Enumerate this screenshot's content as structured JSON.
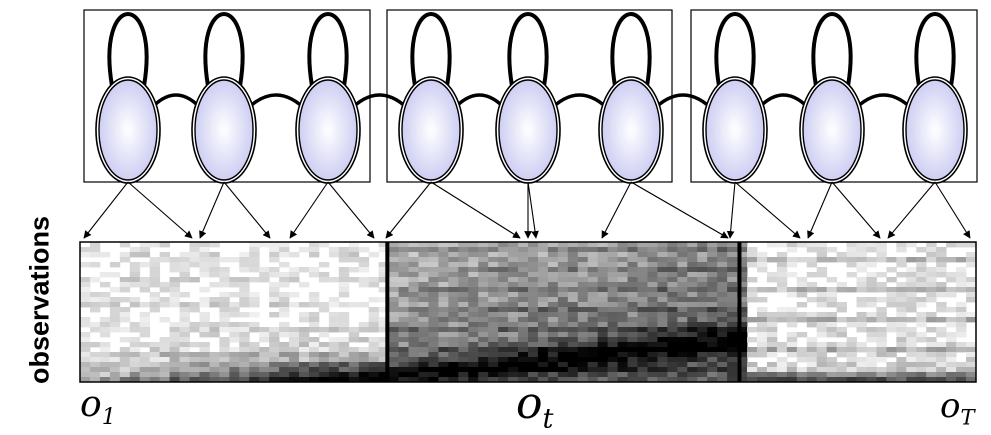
{
  "axis": {
    "ylabel": "observations"
  },
  "observation_labels": {
    "first": {
      "base": "o",
      "sub": "1"
    },
    "middle": {
      "base": "o",
      "sub": "t"
    },
    "last": {
      "base": "o",
      "sub": "T"
    }
  },
  "model": {
    "segments": 3,
    "states_per_segment": 3,
    "state_fill": "#d6d6f6",
    "state_center_fill": "#ffffff",
    "outline_color": "#000000"
  },
  "spectrogram": {
    "columns": 90,
    "rows": 28,
    "segment_boundaries": [
      0.343,
      0.736
    ],
    "colors": {
      "ink": "#000000",
      "paper": "#ffffff"
    }
  }
}
